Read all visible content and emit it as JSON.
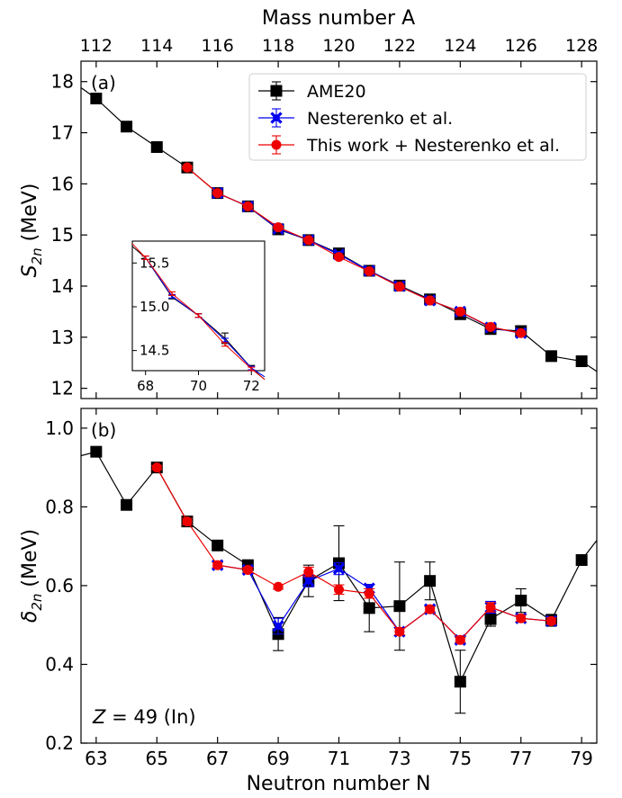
{
  "chart_data": [
    {
      "panel": "(a)",
      "type": "line",
      "top_xlabel": "Mass number A",
      "top_ticks": [
        112,
        114,
        116,
        118,
        120,
        122,
        124,
        126,
        128
      ],
      "ylabel_main": "S",
      "ylabel_sub": "2n",
      "ylabel_unit": "(MeV)",
      "xlim": [
        62.5,
        79.5
      ],
      "ylim": [
        11.8,
        18.4
      ],
      "yticks": [
        12,
        13,
        14,
        15,
        16,
        17,
        18
      ],
      "legend_position": "top-right",
      "series": [
        {
          "name": "AME20",
          "color": "#000000",
          "marker": "square",
          "x": [
            62.5,
            63,
            64,
            65,
            66,
            67,
            68,
            69,
            70,
            71,
            72,
            73,
            74,
            75,
            76,
            77,
            78,
            79,
            79.5
          ],
          "y": [
            17.88,
            17.67,
            17.12,
            16.72,
            16.32,
            15.82,
            15.56,
            15.11,
            14.9,
            14.64,
            14.3,
            14.01,
            13.74,
            13.45,
            13.16,
            13.12,
            12.63,
            12.53,
            12.33
          ],
          "err": [
            0,
            0.03,
            0.03,
            0.03,
            0.03,
            0.03,
            0.03,
            0.06,
            0.03,
            0.08,
            0.04,
            0.05,
            0.05,
            0.05,
            0.05,
            0.05,
            0.05,
            0.05,
            0
          ]
        },
        {
          "name": "Nesterenko et al.",
          "color": "#0000ee",
          "marker": "x",
          "x": [
            67,
            68,
            69,
            70,
            71,
            72,
            73,
            74,
            75,
            76,
            77
          ],
          "y": [
            15.82,
            15.56,
            15.12,
            14.9,
            14.62,
            14.3,
            14.0,
            13.72,
            13.5,
            13.19,
            13.08
          ],
          "err": [
            0.03,
            0.03,
            0.03,
            0.03,
            0.03,
            0.03,
            0.03,
            0.03,
            0.03,
            0.03,
            0.03
          ]
        },
        {
          "name": "This work + Nesterenko et al.",
          "color": "#ee0000",
          "marker": "circle",
          "x": [
            66,
            67,
            68,
            69,
            70,
            71,
            72,
            73,
            74,
            75,
            76,
            77
          ],
          "y": [
            16.32,
            15.82,
            15.56,
            15.15,
            14.9,
            14.57,
            14.29,
            13.99,
            13.72,
            13.5,
            13.2,
            13.08
          ],
          "err": [
            0.02,
            0.02,
            0.02,
            0.02,
            0.02,
            0.02,
            0.02,
            0.02,
            0.02,
            0.02,
            0.02,
            0.02
          ]
        }
      ],
      "inset": {
        "xlim": [
          67.5,
          72.5
        ],
        "ylim": [
          14.27,
          15.75
        ],
        "xticks": [
          68,
          70,
          72
        ],
        "yticks": [
          "14.5",
          "15.0",
          "15.5"
        ],
        "ytick_values": [
          14.5,
          15.0,
          15.5
        ],
        "series": [
          {
            "name": "AME20",
            "color": "#000000",
            "x": [
              67.5,
              68,
              69,
              70,
              71,
              72,
              72.5
            ],
            "y": [
              15.69,
              15.56,
              15.11,
              14.9,
              14.64,
              14.3,
              14.17
            ],
            "err": [
              0,
              0.02,
              0.02,
              0.02,
              0.06,
              0.03,
              0
            ]
          },
          {
            "name": "Nesterenko et al.",
            "color": "#0000ee",
            "x": [
              68,
              69,
              70,
              71,
              72,
              72.5
            ],
            "y": [
              15.56,
              15.12,
              14.9,
              14.62,
              14.3,
              14.2
            ],
            "err": [
              0.02,
              0.02,
              0.02,
              0.02,
              0.02,
              0
            ]
          },
          {
            "name": "This work + Nesterenko et al.",
            "color": "#ee0000",
            "x": [
              67.5,
              68,
              69,
              70,
              71,
              72,
              72.5
            ],
            "y": [
              15.72,
              15.56,
              15.15,
              14.9,
              14.57,
              14.29,
              14.17
            ],
            "err": [
              0,
              0.02,
              0.02,
              0.02,
              0.02,
              0.02,
              0
            ]
          }
        ]
      }
    },
    {
      "panel": "(b)",
      "type": "line",
      "xlabel": "Neutron number N",
      "ylabel_main": "δ",
      "ylabel_sub": "2n",
      "ylabel_unit": "(MeV)",
      "xlim": [
        62.5,
        79.5
      ],
      "ylim": [
        0.2,
        1.05
      ],
      "xticks": [
        63,
        65,
        67,
        69,
        71,
        73,
        75,
        77,
        79
      ],
      "yticks": [
        "0.2",
        "0.4",
        "0.6",
        "0.8",
        "1.0"
      ],
      "ytick_values": [
        0.2,
        0.4,
        0.6,
        0.8,
        1.0
      ],
      "annotation": {
        "italic": "Z",
        "rest": " = 49 (In)"
      },
      "series": [
        {
          "name": "AME20",
          "color": "#000000",
          "marker": "square",
          "x": [
            62.5,
            63,
            64,
            65,
            66,
            67,
            68,
            69,
            70,
            71,
            72,
            73,
            74,
            75,
            76,
            77,
            78,
            79,
            79.5
          ],
          "y": [
            0.93,
            0.94,
            0.805,
            0.9,
            0.763,
            0.702,
            0.652,
            0.477,
            0.612,
            0.657,
            0.543,
            0.548,
            0.612,
            0.356,
            0.515,
            0.562,
            0.512,
            0.665,
            0.715
          ],
          "err": [
            0,
            0.012,
            0.012,
            0.012,
            0.012,
            0.012,
            0.012,
            0.042,
            0.04,
            0.095,
            0.06,
            0.112,
            0.048,
            0.08,
            0.018,
            0.03,
            0.015,
            0.012,
            0
          ]
        },
        {
          "name": "Nesterenko et al.",
          "color": "#0000ee",
          "marker": "x",
          "x": [
            67,
            68,
            69,
            70,
            71,
            72,
            73,
            74,
            75,
            76,
            77,
            78
          ],
          "y": [
            0.652,
            0.64,
            0.497,
            0.612,
            0.643,
            0.593,
            0.483,
            0.54,
            0.462,
            0.545,
            0.517,
            0.51
          ],
          "err": [
            0.008,
            0.008,
            0.02,
            0.015,
            0.015,
            0.01,
            0.01,
            0.008,
            0.008,
            0.015,
            0.01,
            0.01
          ]
        },
        {
          "name": "This work + Nesterenko et al.",
          "color": "#ee0000",
          "marker": "circle",
          "x": [
            65,
            66,
            67,
            68,
            69,
            70,
            71,
            72,
            73,
            74,
            75,
            76,
            77,
            78
          ],
          "y": [
            0.9,
            0.763,
            0.652,
            0.64,
            0.597,
            0.635,
            0.59,
            0.58,
            0.483,
            0.54,
            0.462,
            0.545,
            0.517,
            0.51
          ],
          "err": [
            0.005,
            0.008,
            0.006,
            0.006,
            0.006,
            0.012,
            0.012,
            0.012,
            0.008,
            0.006,
            0.006,
            0.012,
            0.008,
            0.008
          ]
        }
      ]
    }
  ]
}
